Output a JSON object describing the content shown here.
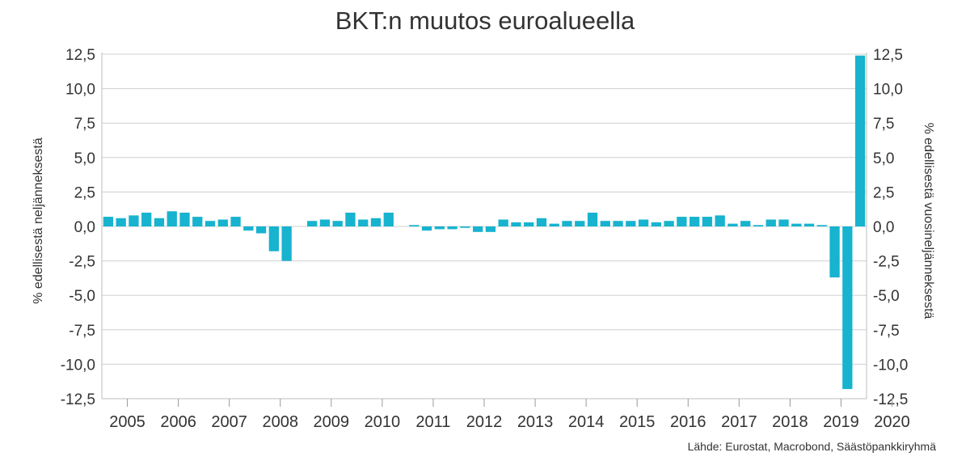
{
  "chart_data": {
    "type": "bar",
    "title": "BKT:n muutos euroalueella",
    "ylabel_left": "% edellisestä neljänneksestä",
    "ylabel_right": "% edellisestä vuosineljänneksestä",
    "ylim": [
      -12.5,
      12.5
    ],
    "yticks": [
      "12,5",
      "10,0",
      "7,5",
      "5,0",
      "2,5",
      "0,0",
      "-2,5",
      "-5,0",
      "-7,5",
      "-10,0",
      "-12,5"
    ],
    "ytick_values": [
      12.5,
      10,
      7.5,
      5,
      2.5,
      0,
      -2.5,
      -5,
      -7.5,
      -10,
      -12.5
    ],
    "years": [
      "2005",
      "2006",
      "2007",
      "2008",
      "2009",
      "2010",
      "2011",
      "2012",
      "2013",
      "2014",
      "2015",
      "2016",
      "2017",
      "2018",
      "2019",
      "2020"
    ],
    "quarters_per_year": 4,
    "bar_color": "#17b3cf",
    "grid": true,
    "values": [
      0.7,
      0.6,
      0.8,
      1.0,
      0.6,
      1.1,
      1.0,
      0.7,
      0.4,
      0.5,
      0.7,
      -0.3,
      -0.5,
      -1.8,
      -2.5,
      0.0,
      0.4,
      0.5,
      0.4,
      1.0,
      0.5,
      0.6,
      1.0,
      0.0,
      0.1,
      -0.3,
      -0.2,
      -0.2,
      -0.1,
      -0.4,
      -0.4,
      0.5,
      0.3,
      0.3,
      0.6,
      0.2,
      0.4,
      0.4,
      1.0,
      0.4,
      0.4,
      0.4,
      0.5,
      0.3,
      0.4,
      0.7,
      0.7,
      0.7,
      0.8,
      0.2,
      0.4,
      0.1,
      0.5,
      0.5,
      0.2,
      0.2,
      0.1,
      -3.7,
      -11.8,
      12.4
    ]
  },
  "source": "Lähde: Eurostat, Macrobond, Säästöpankkiryhmä"
}
